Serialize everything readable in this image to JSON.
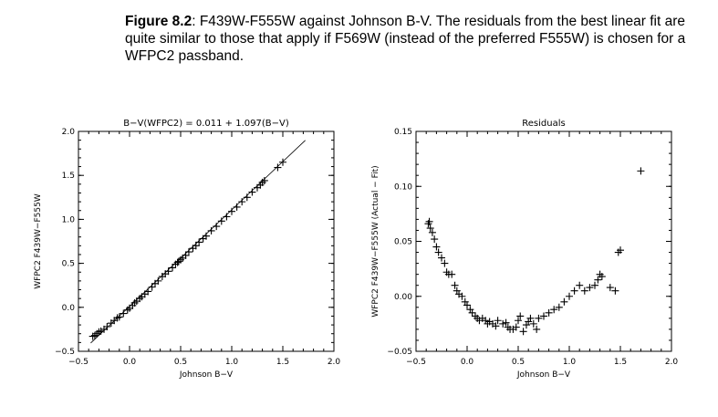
{
  "caption": {
    "label": "Figure 8.2",
    "text": ": F439W-F555W against Johnson B-V. The residuals from the best linear fit are quite similar to those that apply if F569W (instead of the preferred F555W) is chosen for a WFPC2 passband."
  },
  "chart_data": [
    {
      "type": "scatter",
      "title": "B−V(WFPC2) =  0.011 +  1.097(B−V)",
      "xlabel": "Johnson B−V",
      "ylabel": "WFPC2 F439W−F555W",
      "xlim": [
        -0.5,
        2.0
      ],
      "ylim": [
        -0.5,
        2.0
      ],
      "x_ticks": [
        "−0.5",
        "0.0",
        "0.5",
        "1.0",
        "1.5",
        "2.0"
      ],
      "y_ticks": [
        "−0.5",
        "0.0",
        "0.5",
        "1.0",
        "1.5",
        "2.0"
      ],
      "grid": false,
      "fit_line": {
        "intercept": 0.011,
        "slope": 1.097,
        "x_range": [
          -0.38,
          1.72
        ]
      },
      "series": [
        {
          "marker": "plus",
          "x": [
            -0.36,
            -0.34,
            -0.32,
            -0.3,
            -0.28,
            -0.25,
            -0.22,
            -0.18,
            -0.15,
            -0.12,
            -0.1,
            -0.06,
            -0.02,
            0.0,
            0.03,
            0.05,
            0.07,
            0.1,
            0.12,
            0.15,
            0.18,
            0.22,
            0.25,
            0.28,
            0.32,
            0.35,
            0.38,
            0.42,
            0.45,
            0.47,
            0.48,
            0.5,
            0.52,
            0.55,
            0.58,
            0.62,
            0.65,
            0.68,
            0.72,
            0.75,
            0.8,
            0.85,
            0.9,
            0.95,
            1.0,
            1.05,
            1.1,
            1.15,
            1.2,
            1.25,
            1.28,
            1.3,
            1.32,
            1.45,
            1.5
          ],
          "y": [
            -0.33,
            -0.32,
            -0.3,
            -0.28,
            -0.27,
            -0.25,
            -0.22,
            -0.18,
            -0.15,
            -0.12,
            -0.11,
            -0.07,
            -0.03,
            -0.01,
            0.02,
            0.05,
            0.07,
            0.1,
            0.12,
            0.15,
            0.18,
            0.23,
            0.27,
            0.3,
            0.35,
            0.38,
            0.41,
            0.45,
            0.49,
            0.51,
            0.52,
            0.54,
            0.56,
            0.59,
            0.63,
            0.67,
            0.7,
            0.74,
            0.78,
            0.81,
            0.87,
            0.92,
            0.98,
            1.03,
            1.09,
            1.14,
            1.2,
            1.25,
            1.31,
            1.36,
            1.39,
            1.42,
            1.44,
            1.59,
            1.65
          ]
        }
      ]
    },
    {
      "type": "scatter",
      "title": "Residuals",
      "xlabel": "Johnson B−V",
      "ylabel": "WFPC2 F439W−F555W (Actual − Fit)",
      "xlim": [
        -0.5,
        2.0
      ],
      "ylim": [
        -0.05,
        0.15
      ],
      "x_ticks": [
        "−0.5",
        "0.0",
        "0.5",
        "1.0",
        "1.5",
        "2.0"
      ],
      "y_ticks": [
        "−0.05",
        "0.00",
        "0.05",
        "0.10",
        "0.15"
      ],
      "grid": false,
      "series": [
        {
          "marker": "plus",
          "x": [
            -0.38,
            -0.37,
            -0.36,
            -0.34,
            -0.32,
            -0.3,
            -0.28,
            -0.25,
            -0.22,
            -0.2,
            -0.18,
            -0.15,
            -0.12,
            -0.1,
            -0.08,
            -0.05,
            -0.02,
            0.0,
            0.03,
            0.05,
            0.08,
            0.1,
            0.12,
            0.15,
            0.18,
            0.2,
            0.22,
            0.25,
            0.28,
            0.3,
            0.35,
            0.38,
            0.4,
            0.42,
            0.45,
            0.48,
            0.5,
            0.52,
            0.55,
            0.58,
            0.6,
            0.62,
            0.65,
            0.68,
            0.7,
            0.75,
            0.8,
            0.85,
            0.9,
            0.95,
            1.0,
            1.05,
            1.1,
            1.15,
            1.2,
            1.25,
            1.28,
            1.3,
            1.32,
            1.4,
            1.45,
            1.48,
            1.5,
            1.7
          ],
          "y": [
            0.066,
            0.068,
            0.062,
            0.058,
            0.052,
            0.045,
            0.04,
            0.035,
            0.03,
            0.022,
            0.02,
            0.02,
            0.01,
            0.005,
            0.002,
            0.0,
            -0.005,
            -0.008,
            -0.012,
            -0.015,
            -0.018,
            -0.02,
            -0.022,
            -0.02,
            -0.022,
            -0.025,
            -0.023,
            -0.025,
            -0.027,
            -0.022,
            -0.025,
            -0.024,
            -0.028,
            -0.03,
            -0.03,
            -0.028,
            -0.022,
            -0.018,
            -0.032,
            -0.026,
            -0.023,
            -0.02,
            -0.025,
            -0.03,
            -0.02,
            -0.018,
            -0.015,
            -0.012,
            -0.01,
            -0.005,
            0.0,
            0.005,
            0.01,
            0.005,
            0.008,
            0.01,
            0.015,
            0.02,
            0.018,
            0.008,
            0.005,
            0.04,
            0.042,
            0.114
          ]
        }
      ]
    }
  ]
}
